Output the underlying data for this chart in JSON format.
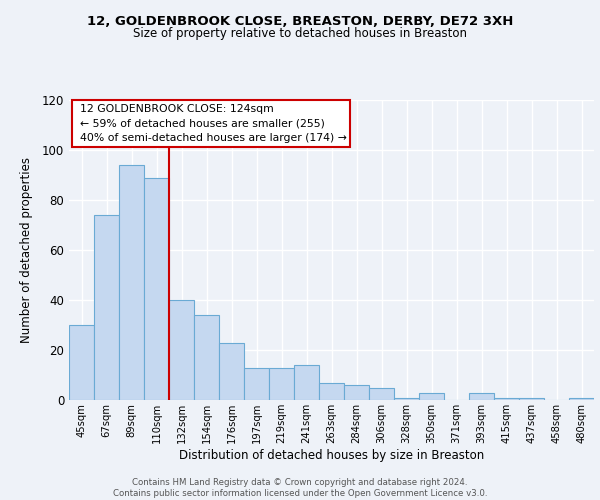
{
  "title1": "12, GOLDENBROOK CLOSE, BREASTON, DERBY, DE72 3XH",
  "title2": "Size of property relative to detached houses in Breaston",
  "xlabel": "Distribution of detached houses by size in Breaston",
  "ylabel": "Number of detached properties",
  "bar_labels": [
    "45sqm",
    "67sqm",
    "89sqm",
    "110sqm",
    "132sqm",
    "154sqm",
    "176sqm",
    "197sqm",
    "219sqm",
    "241sqm",
    "263sqm",
    "284sqm",
    "306sqm",
    "328sqm",
    "350sqm",
    "371sqm",
    "393sqm",
    "415sqm",
    "437sqm",
    "458sqm",
    "480sqm"
  ],
  "bar_values": [
    30,
    74,
    94,
    89,
    40,
    34,
    23,
    13,
    13,
    14,
    7,
    6,
    5,
    1,
    3,
    0,
    3,
    1,
    1,
    0,
    1
  ],
  "bar_color": "#c5d8f0",
  "bar_edgecolor": "#6aaad4",
  "vline_color": "#cc0000",
  "vline_x_index": 4,
  "annotation_text": "12 GOLDENBROOK CLOSE: 124sqm\n← 59% of detached houses are smaller (255)\n40% of semi-detached houses are larger (174) →",
  "annotation_box_color": "white",
  "annotation_box_edgecolor": "#cc0000",
  "ylim": [
    0,
    120
  ],
  "yticks": [
    0,
    20,
    40,
    60,
    80,
    100,
    120
  ],
  "footer_text": "Contains HM Land Registry data © Crown copyright and database right 2024.\nContains public sector information licensed under the Open Government Licence v3.0.",
  "background_color": "#eef2f8",
  "grid_color": "#ffffff"
}
